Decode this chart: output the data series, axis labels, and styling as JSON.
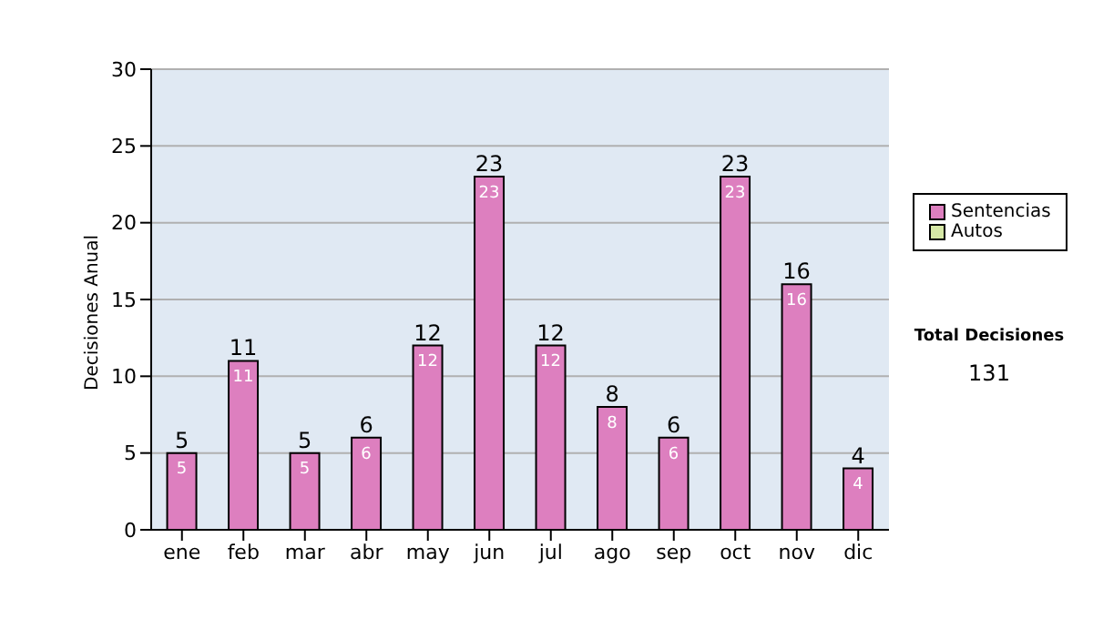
{
  "chart_data": {
    "type": "bar",
    "ylabel": "Decisiones Anual",
    "categories": [
      "ene",
      "feb",
      "mar",
      "abr",
      "may",
      "jun",
      "jul",
      "ago",
      "sep",
      "oct",
      "nov",
      "dic"
    ],
    "series": [
      {
        "name": "Sentencias",
        "color": "#dd7fbf",
        "values": [
          5,
          11,
          5,
          6,
          12,
          23,
          12,
          8,
          6,
          23,
          16,
          4
        ]
      },
      {
        "name": "Autos",
        "color": "#d6e8a6",
        "values": [
          null,
          null,
          null,
          null,
          null,
          null,
          null,
          null,
          null,
          null,
          null,
          null
        ]
      }
    ],
    "stacked": true,
    "data_labels": true,
    "totals": [
      "5",
      "11",
      "5",
      "6",
      "12",
      "23",
      "12",
      "8",
      "6",
      "23",
      "16",
      "4"
    ],
    "ylim": [
      0,
      30
    ],
    "yticks": [
      0,
      5,
      10,
      15,
      20,
      25,
      30
    ],
    "grid": "y",
    "legend": "right",
    "annotations": [
      "Total Decisiones",
      "131"
    ]
  }
}
